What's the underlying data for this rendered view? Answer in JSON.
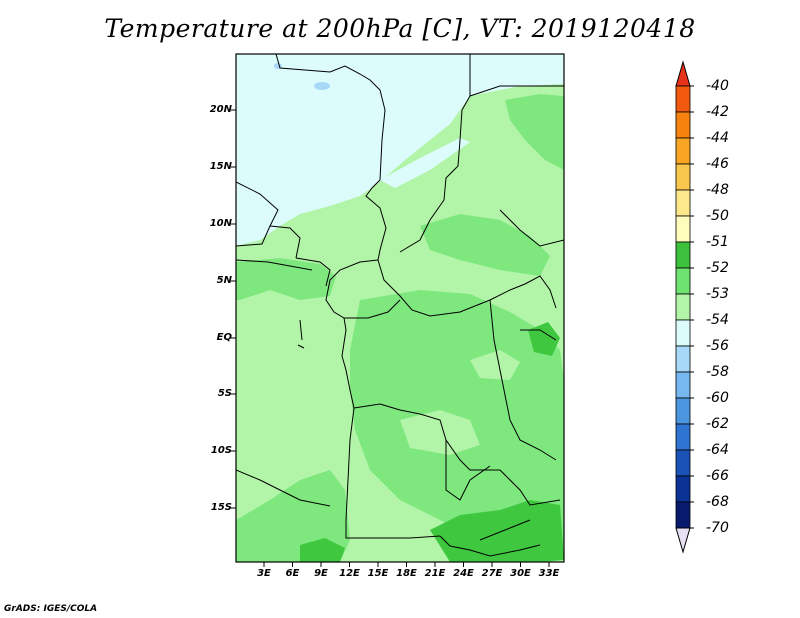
{
  "title": "Temperature at 200hPa [C], VT: 2019120418",
  "credit": "GrADS: IGES/COLA",
  "map": {
    "lat_ticks": [
      "20N",
      "15N",
      "10N",
      "5N",
      "EQ",
      "5S",
      "10S",
      "15S"
    ],
    "lon_ticks": [
      "3E",
      "6E",
      "9E",
      "12E",
      "15E",
      "18E",
      "21E",
      "24E",
      "27E",
      "30E",
      "33E"
    ],
    "region_fill": {
      "minus_54_color": "#dcfcfc",
      "minus_53_color": "#b3f5a8",
      "minus_52_color": "#7ee77e",
      "minus_51_color": "#3fc83f",
      "minus_56_color": "#a8d8f8"
    }
  },
  "colorbar": {
    "labels": [
      "-40",
      "-42",
      "-44",
      "-46",
      "-48",
      "-50",
      "-51",
      "-52",
      "-53",
      "-54",
      "-56",
      "-58",
      "-60",
      "-62",
      "-64",
      "-66",
      "-68",
      "-70"
    ],
    "colors": [
      "#e8331c",
      "#f25a0f",
      "#f7820d",
      "#f9a624",
      "#fac74e",
      "#fde88c",
      "#fffdbc",
      "#3cc13c",
      "#6fe36f",
      "#b3f5a8",
      "#dcfcfc",
      "#a8d8f8",
      "#78b8f0",
      "#4c96e0",
      "#2e74d0",
      "#1a52b8",
      "#0c3296",
      "#081a6e",
      "#e6e0f4"
    ]
  }
}
